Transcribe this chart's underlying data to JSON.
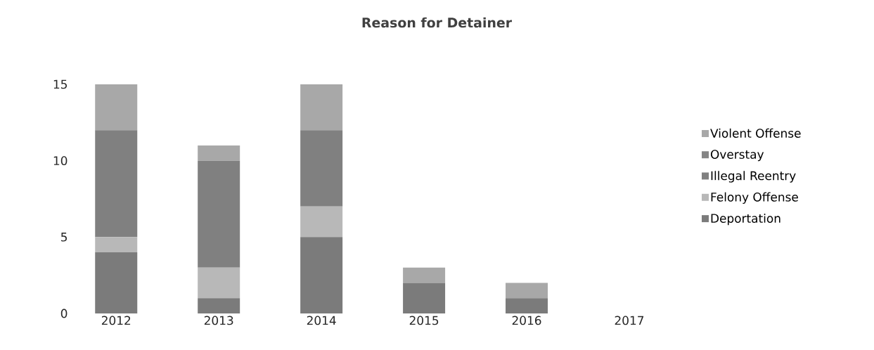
{
  "chart_data": {
    "type": "bar",
    "title": "Reason for Detainer",
    "stacked": true,
    "categories": [
      "2012",
      "2013",
      "2014",
      "2015",
      "2016",
      "2017"
    ],
    "series": [
      {
        "name": "Deportation",
        "color": "#7b7b7b",
        "values": [
          4,
          1,
          5,
          2,
          1,
          0
        ]
      },
      {
        "name": "Felony Offense",
        "color": "#b8b8b8",
        "values": [
          1,
          2,
          2,
          0,
          0,
          0
        ]
      },
      {
        "name": "Illegal Reentry",
        "color": "#808080",
        "values": [
          7,
          7,
          5,
          0,
          0,
          0
        ]
      },
      {
        "name": "Overstay",
        "color": "#858585",
        "values": [
          0,
          0,
          0,
          0,
          0,
          0
        ]
      },
      {
        "name": "Violent Offense",
        "color": "#a8a8a8",
        "values": [
          3,
          1,
          3,
          1,
          1,
          0
        ]
      }
    ],
    "ylim": [
      0,
      15
    ],
    "yticks": [
      0,
      5,
      10,
      15
    ],
    "grid": false,
    "legend": "right"
  }
}
